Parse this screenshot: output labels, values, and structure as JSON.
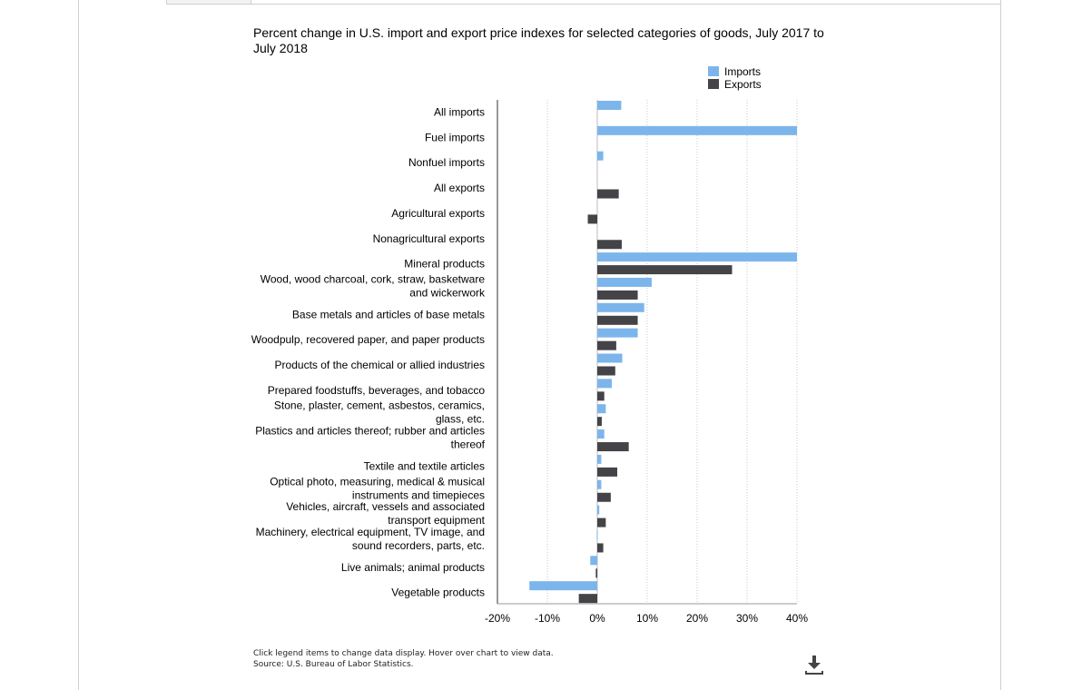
{
  "chart_data": {
    "type": "bar",
    "orientation": "horizontal",
    "title": "Percent change in U.S. import and export price indexes for selected categories of goods, July 2017 to July 2018",
    "categories": [
      [
        "All imports"
      ],
      [
        "Fuel imports"
      ],
      [
        "Nonfuel imports"
      ],
      [
        "All exports"
      ],
      [
        "Agricultural exports"
      ],
      [
        "Nonagricultural exports"
      ],
      [
        "Mineral products"
      ],
      [
        "Wood, wood charcoal, cork, straw, basketware",
        "and wickerwork"
      ],
      [
        "Base metals and articles of base metals"
      ],
      [
        "Woodpulp, recovered paper, and paper products"
      ],
      [
        "Products of the chemical or allied industries"
      ],
      [
        "Prepared foodstuffs, beverages, and tobacco"
      ],
      [
        "Stone, plaster, cement, asbestos, ceramics,",
        "glass, etc."
      ],
      [
        "Plastics and articles thereof; rubber and articles",
        "thereof"
      ],
      [
        "Textile and textile articles"
      ],
      [
        "Optical photo, measuring, medical & musical",
        "instruments and timepieces"
      ],
      [
        "Vehicles, aircraft, vessels and associated",
        "transport equipment"
      ],
      [
        "Machinery, electrical equipment, TV image, and",
        "sound recorders, parts, etc."
      ],
      [
        "Live animals; animal products"
      ],
      [
        "Vegetable products"
      ]
    ],
    "series": [
      {
        "name": "Imports",
        "color": "#7cb5ec",
        "values": [
          4.8,
          40,
          1.2,
          null,
          null,
          null,
          40,
          10.9,
          9.4,
          8.1,
          5.0,
          2.9,
          1.7,
          1.4,
          0.8,
          0.8,
          0.4,
          -0.1,
          -1.4,
          -13.6
        ]
      },
      {
        "name": "Exports",
        "color": "#434348",
        "values": [
          null,
          null,
          null,
          4.3,
          -1.9,
          4.9,
          27.0,
          8.1,
          8.1,
          3.8,
          3.6,
          1.4,
          0.9,
          6.3,
          4.0,
          2.7,
          1.7,
          1.2,
          -0.3,
          -3.7
        ]
      }
    ],
    "xlim": [
      -20,
      40
    ],
    "xticks": [
      -20,
      -10,
      0,
      10,
      20,
      30,
      40
    ],
    "xtick_labels": [
      "-20%",
      "-10%",
      "0%",
      "10%",
      "20%",
      "30%",
      "40%"
    ],
    "grid": true,
    "legend_position": "top-right"
  },
  "footer": {
    "note": "Click legend items to change data display. Hover over chart to view data.",
    "source": "Source: U.S. Bureau of Labor Statistics."
  },
  "icons": {
    "download": "download-icon"
  }
}
